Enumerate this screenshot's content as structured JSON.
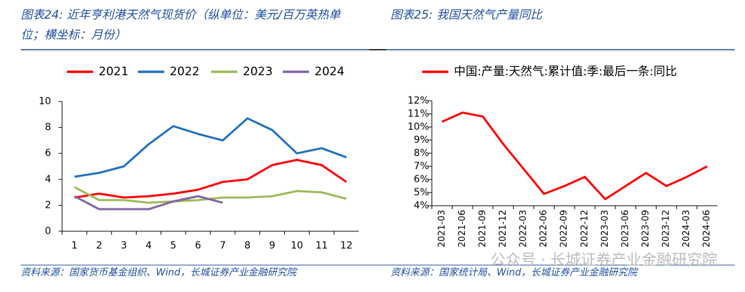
{
  "chart_data": [
    {
      "type": "line",
      "title": "图表24: 近年亨利港天然气现货价（纵单位：美元/百万英热单位；横坐标：月份）",
      "source": "资料来源：国家货币基金组织、Wind，长城证券产业金融研究院",
      "categories": [
        "1",
        "2",
        "3",
        "4",
        "5",
        "6",
        "7",
        "8",
        "9",
        "10",
        "11",
        "12"
      ],
      "series": [
        {
          "name": "2021",
          "color": "#ff0000",
          "values": [
            2.6,
            2.9,
            2.6,
            2.7,
            2.9,
            3.2,
            3.8,
            4.0,
            5.1,
            5.5,
            5.1,
            3.8
          ]
        },
        {
          "name": "2022",
          "color": "#2070c0",
          "values": [
            4.2,
            4.5,
            5.0,
            6.7,
            8.1,
            7.5,
            7.0,
            8.7,
            7.8,
            6.0,
            6.4,
            5.7
          ]
        },
        {
          "name": "2023",
          "color": "#9bbb59",
          "values": [
            3.4,
            2.4,
            2.4,
            2.2,
            2.3,
            2.4,
            2.6,
            2.6,
            2.7,
            3.1,
            3.0,
            2.5
          ]
        },
        {
          "name": "2024",
          "color": "#8064a2",
          "values": [
            2.7,
            1.7,
            1.7,
            1.7,
            2.3,
            2.7,
            2.2,
            null,
            null,
            null,
            null,
            null
          ]
        }
      ],
      "ylim": [
        0,
        10
      ],
      "yticks": [
        0,
        2,
        4,
        6,
        8,
        10
      ]
    },
    {
      "type": "line",
      "title": "图表25: 我国天然气产量同比",
      "source": "资料来源：国家统计局、Wind，长城证券产业金融研究院",
      "categories": [
        "2021-03",
        "2021-06",
        "2021-09",
        "2021-12",
        "2022-03",
        "2022-06",
        "2022-09",
        "2022-12",
        "2023-03",
        "2023-06",
        "2023-09",
        "2023-12",
        "2024-03",
        "2024-06"
      ],
      "series": [
        {
          "name": "中国:产量:天然气:累计值:季:最后一条:同比",
          "color": "#ff0000",
          "values": [
            10.4,
            11.1,
            10.8,
            8.7,
            6.8,
            4.9,
            5.5,
            6.2,
            4.5,
            5.5,
            6.5,
            5.5,
            6.2,
            7.0
          ]
        }
      ],
      "ylim": [
        4,
        12
      ],
      "yticks": [
        {
          "value": 4,
          "label": "4%"
        },
        {
          "value": 5,
          "label": "5%"
        },
        {
          "value": 6,
          "label": "6%"
        },
        {
          "value": 7,
          "label": "7%"
        },
        {
          "value": 8,
          "label": "8%"
        },
        {
          "value": 9,
          "label": "9%"
        },
        {
          "value": 10,
          "label": "10%"
        },
        {
          "value": 11,
          "label": "11%"
        },
        {
          "value": 12,
          "label": "12%"
        }
      ],
      "rotate_labels": true
    }
  ],
  "watermark": "公众号 · 长城证券产业金融研究院"
}
